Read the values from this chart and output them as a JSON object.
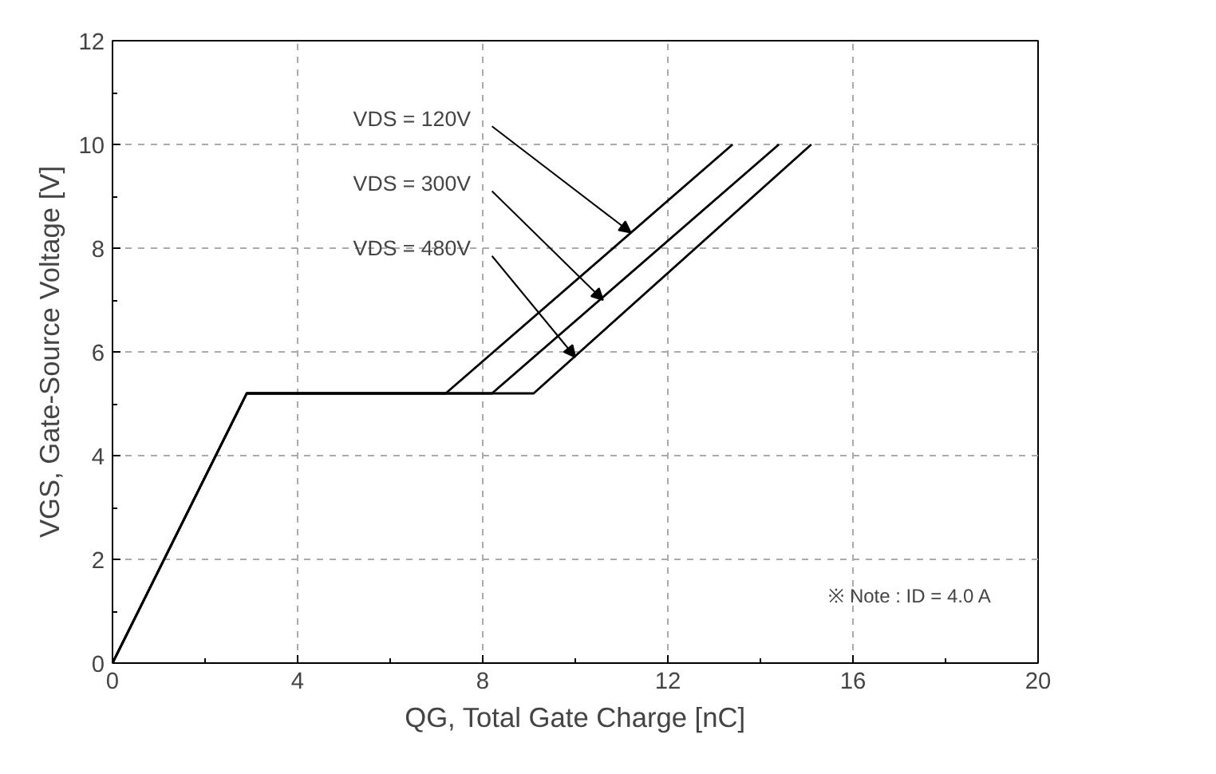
{
  "chart_data": {
    "type": "line",
    "xlabel": "QG, Total Gate Charge [nC]",
    "ylabel": "VGS, Gate-Source Voltage [V]",
    "xlim": [
      0,
      20
    ],
    "xticks": [
      0,
      4,
      8,
      12,
      16,
      20
    ],
    "ylim": [
      0,
      12
    ],
    "yticks": [
      0,
      2,
      4,
      6,
      8,
      10,
      12
    ],
    "grid": true,
    "line_style": "solid",
    "series": [
      {
        "color": "#000000",
        "x": [
          0,
          2.9,
          7.2,
          13.4
        ],
        "values": [
          0,
          5.2,
          5.2,
          10
        ]
      },
      {
        "color": "#000000",
        "x": [
          0,
          2.9,
          8.2,
          14.4
        ],
        "values": [
          0,
          5.2,
          5.2,
          10
        ]
      },
      {
        "color": "#000000",
        "x": [
          0,
          2.9,
          9.1,
          15.1
        ],
        "values": [
          0,
          5.2,
          5.2,
          10
        ]
      }
    ],
    "annotations": [
      {
        "text": "VDS = 120V",
        "x": 11.2,
        "y": 8.3
      },
      {
        "text": "VDS = 300V",
        "x": 10.6,
        "y": 7.0
      },
      {
        "text": "VDS = 480V",
        "x": 10.0,
        "y": 5.9
      },
      "※ Note : ID = 4.0 A"
    ]
  }
}
